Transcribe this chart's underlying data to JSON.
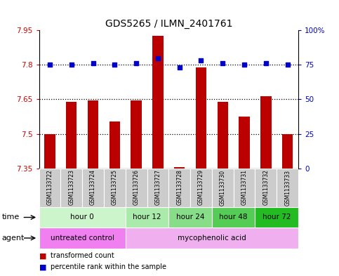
{
  "title": "GDS5265 / ILMN_2401761",
  "samples": [
    "GSM1133722",
    "GSM1133723",
    "GSM1133724",
    "GSM1133725",
    "GSM1133726",
    "GSM1133727",
    "GSM1133728",
    "GSM1133729",
    "GSM1133730",
    "GSM1133731",
    "GSM1133732",
    "GSM1133733"
  ],
  "bar_values": [
    7.5,
    7.64,
    7.645,
    7.555,
    7.645,
    7.925,
    7.355,
    7.79,
    7.64,
    7.575,
    7.665,
    7.5
  ],
  "percentile_values": [
    75,
    75,
    76,
    75,
    76,
    80,
    73,
    78,
    76,
    75,
    76,
    75
  ],
  "ylim_left": [
    7.35,
    7.95
  ],
  "ylim_right": [
    0,
    100
  ],
  "yticks_left": [
    7.35,
    7.5,
    7.65,
    7.8,
    7.95
  ],
  "yticks_right": [
    0,
    25,
    50,
    75,
    100
  ],
  "ytick_labels_left": [
    "7.35",
    "7.5",
    "7.65",
    "7.8",
    "7.95"
  ],
  "ytick_labels_right": [
    "0",
    "25",
    "50",
    "75",
    "100%"
  ],
  "hlines": [
    7.5,
    7.65,
    7.8
  ],
  "time_groups": [
    {
      "label": "hour 0",
      "start": 0,
      "end": 4,
      "color": "#ccf5cc"
    },
    {
      "label": "hour 12",
      "start": 4,
      "end": 6,
      "color": "#aaeaaa"
    },
    {
      "label": "hour 24",
      "start": 6,
      "end": 8,
      "color": "#88dd88"
    },
    {
      "label": "hour 48",
      "start": 8,
      "end": 10,
      "color": "#55cc55"
    },
    {
      "label": "hour 72",
      "start": 10,
      "end": 12,
      "color": "#22bb22"
    }
  ],
  "agent_groups": [
    {
      "label": "untreated control",
      "start": 0,
      "end": 4,
      "color": "#f080f0"
    },
    {
      "label": "mycophenolic acid",
      "start": 4,
      "end": 12,
      "color": "#f0b0f0"
    }
  ],
  "bar_color": "#bb0000",
  "dot_color": "#0000cc",
  "bar_bottom": 7.35,
  "legend_red_label": "transformed count",
  "legend_blue_label": "percentile rank within the sample",
  "background_color": "#ffffff",
  "plot_bg_color": "#ffffff",
  "grid_color": "#000000",
  "title_fontsize": 10,
  "tick_fontsize": 7.5,
  "sample_fontsize": 5.5,
  "row_fontsize": 7.5
}
